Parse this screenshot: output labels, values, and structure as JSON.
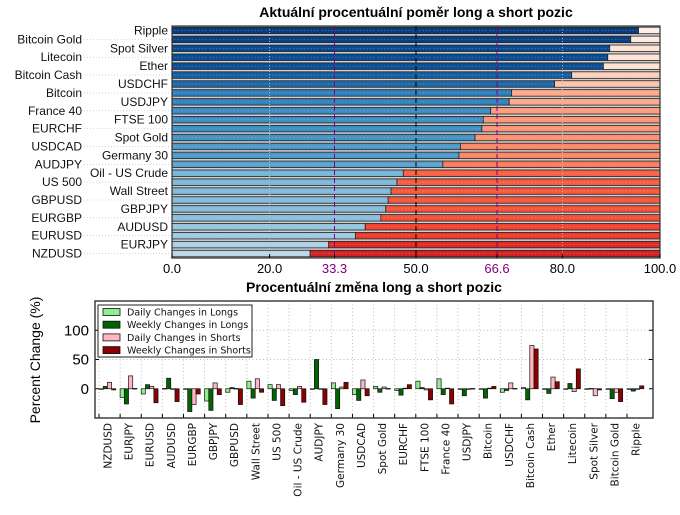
{
  "chart_data": [
    {
      "type": "bar",
      "orientation": "horizontal",
      "stacked": true,
      "title": "Aktuální procentuální poměr long a short pozic",
      "categories": [
        "Ripple",
        "Bitcoin Gold",
        "Spot Silver",
        "Litecoin",
        "Ether",
        "Bitcoin Cash",
        "USDCHF",
        "Bitcoin",
        "USDJPY",
        "France 40",
        "FTSE 100",
        "EURCHF",
        "Spot Gold",
        "USDCAD",
        "Germany 30",
        "AUDJPY",
        "Oil - US Crude",
        "US 500",
        "Wall Street",
        "GBPUSD",
        "GBPJPY",
        "EURGBP",
        "AUDUSD",
        "EURUSD",
        "EURJPY",
        "NZDUSD"
      ],
      "series": [
        {
          "values": [
            95.6,
            94.0,
            89.7,
            89.3,
            88.4,
            81.9,
            78.4,
            69.6,
            69.1,
            65.3,
            63.8,
            63.5,
            62.1,
            59.1,
            58.8,
            55.5,
            47.4,
            46.1,
            44.9,
            44.3,
            43.8,
            42.8,
            39.6,
            37.6,
            32.1,
            28.3
          ],
          "colormap": "Blues"
        },
        {
          "values": [
            4.4,
            6.0,
            10.3,
            10.7,
            11.6,
            18.1,
            21.6,
            30.4,
            30.9,
            34.7,
            36.2,
            36.5,
            37.9,
            40.9,
            41.2,
            44.5,
            52.6,
            53.9,
            55.1,
            55.7,
            56.2,
            57.2,
            60.4,
            62.4,
            67.9,
            71.7
          ],
          "colormap": "Reds"
        }
      ],
      "xlim": [
        0,
        100
      ],
      "xticks": [
        "0.0",
        "20.0",
        "33.3",
        "50.0",
        "66.6",
        "80.0",
        "100.0"
      ],
      "xtick_values": [
        0,
        20,
        33.3,
        50,
        66.6,
        80,
        100
      ],
      "reference_lines": [
        {
          "value": 20,
          "color": "#bbbbbb"
        },
        {
          "value": 33.3,
          "color": "#800080"
        },
        {
          "value": 50,
          "color": "#000000"
        },
        {
          "value": 66.6,
          "color": "#800080"
        },
        {
          "value": 80,
          "color": "#bbbbbb"
        }
      ],
      "highlight_tick_color": "#800080"
    },
    {
      "type": "bar",
      "title": "Procentuální změna long a short pozic",
      "ylabel": "Percent Change (%)",
      "ylim": [
        -50,
        150
      ],
      "yticks": [
        "0",
        "50",
        "100"
      ],
      "ytick_values": [
        0,
        50,
        100
      ],
      "grid": true,
      "legend": "top-left",
      "categories": [
        "NZDUSD",
        "EURJPY",
        "EURUSD",
        "AUDUSD",
        "EURGBP",
        "GBPJPY",
        "GBPUSD",
        "Wall Street",
        "US 500",
        "Oil - US Crude",
        "AUDJPY",
        "Germany 30",
        "USDCAD",
        "Spot Gold",
        "EURCHF",
        "FTSE 100",
        "France 40",
        "USDJPY",
        "Bitcoin",
        "USDCHF",
        "Bitcoin Cash",
        "Ether",
        "Litecoin",
        "Spot Silver",
        "Bitcoin Gold",
        "Ripple"
      ],
      "series": [
        {
          "name": "Daily Changes in Longs",
          "color": "#90ee90",
          "values": [
            -1,
            -15,
            -9,
            0.5,
            -1,
            -21,
            -6,
            13,
            7,
            -3,
            0,
            10,
            -10,
            4,
            -3,
            13,
            17,
            0,
            0,
            -6,
            2,
            0,
            -1,
            0,
            0,
            0
          ]
        },
        {
          "name": "Weekly Changes in Longs",
          "color": "#006400",
          "values": [
            4,
            -26,
            7,
            18,
            -39,
            -37,
            2,
            -16,
            -20,
            -10,
            50,
            -34,
            -20,
            -6,
            -11,
            2,
            -10,
            -12,
            -16,
            -3,
            -19,
            -8,
            9,
            0.5,
            -17,
            -4
          ]
        },
        {
          "name": "Daily Changes in Shorts",
          "color": "#ffb6c1",
          "values": [
            11,
            22,
            4,
            -1,
            -27,
            10,
            0.5,
            17,
            7,
            4,
            0,
            3,
            15,
            3,
            1,
            -2,
            1,
            0,
            1,
            10,
            74,
            20,
            -5,
            -12,
            -6,
            -1
          ]
        },
        {
          "name": "Weekly Changes in Shorts",
          "color": "#8b0000",
          "values": [
            -2,
            0.5,
            -24,
            -22,
            -9,
            -10,
            -27,
            -6,
            -29,
            -23,
            -27,
            11,
            -12,
            0.5,
            7,
            -19,
            -26,
            0.5,
            4,
            0.5,
            68,
            12,
            34,
            -2,
            -22,
            5
          ]
        }
      ]
    }
  ]
}
